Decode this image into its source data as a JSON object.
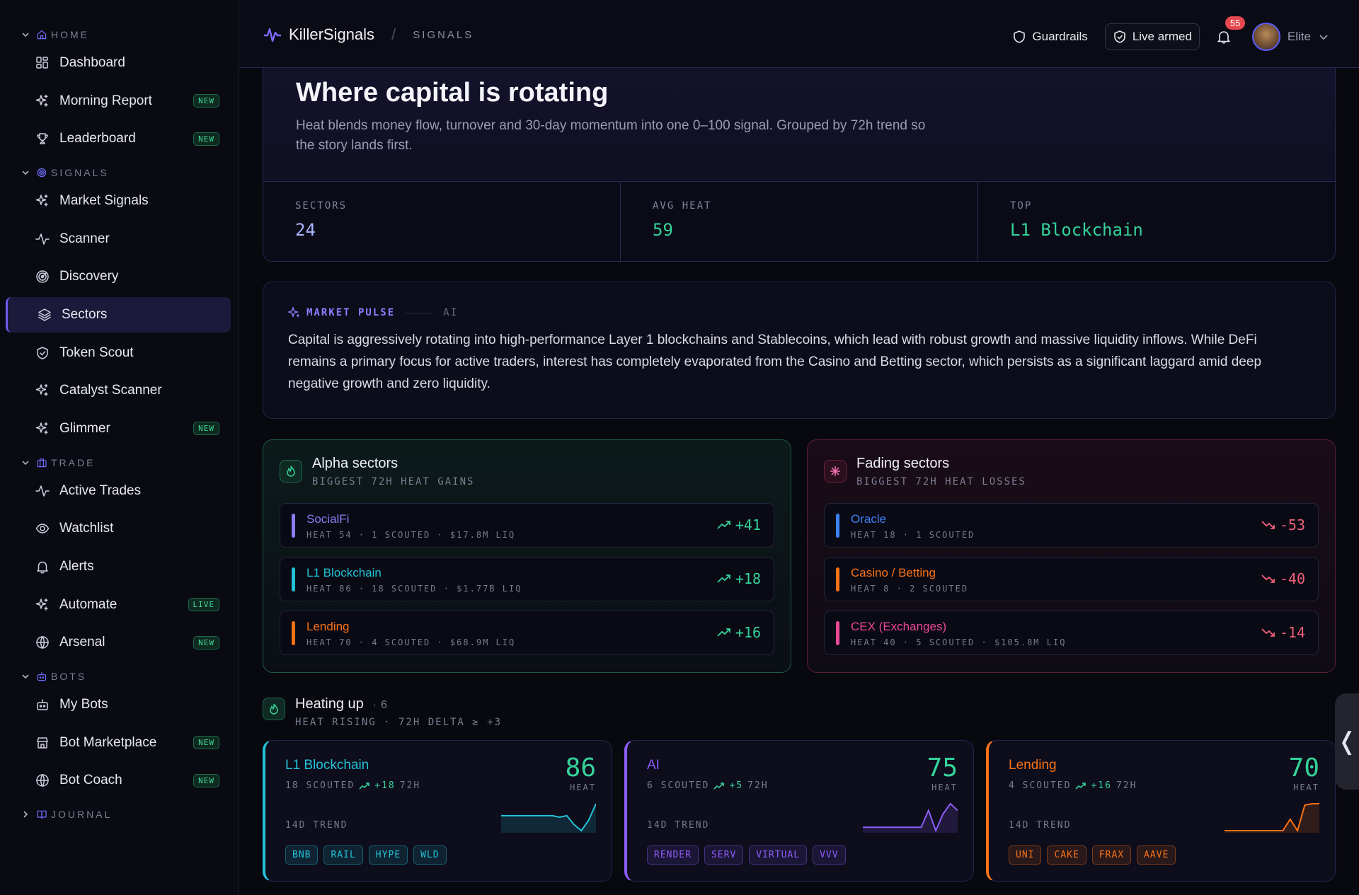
{
  "sidebar": {
    "sections": [
      {
        "id": "home",
        "label": "HOME",
        "items": [
          {
            "label": "Dashboard",
            "icon": "grid-icon",
            "badge": ""
          },
          {
            "label": "Morning Report",
            "icon": "sparkles-icon",
            "badge": "NEW"
          },
          {
            "label": "Leaderboard",
            "icon": "trophy-icon",
            "badge": "NEW"
          }
        ]
      },
      {
        "id": "signals",
        "label": "SIGNALS",
        "items": [
          {
            "label": "Market Signals",
            "icon": "sparkles-icon",
            "badge": ""
          },
          {
            "label": "Scanner",
            "icon": "activity-icon",
            "badge": ""
          },
          {
            "label": "Discovery",
            "icon": "radar-icon",
            "badge": ""
          },
          {
            "label": "Sectors",
            "icon": "layers-icon",
            "badge": "",
            "active": true
          },
          {
            "label": "Token Scout",
            "icon": "shield-icon",
            "badge": ""
          },
          {
            "label": "Catalyst Scanner",
            "icon": "sparkles-icon",
            "badge": ""
          },
          {
            "label": "Glimmer",
            "icon": "sparkles-icon",
            "badge": "NEW"
          }
        ]
      },
      {
        "id": "trade",
        "label": "TRADE",
        "items": [
          {
            "label": "Active Trades",
            "icon": "activity-icon",
            "badge": ""
          },
          {
            "label": "Watchlist",
            "icon": "eye-icon",
            "badge": ""
          },
          {
            "label": "Alerts",
            "icon": "bell-icon",
            "badge": ""
          },
          {
            "label": "Automate",
            "icon": "sparkles-icon",
            "badge": "LIVE"
          },
          {
            "label": "Arsenal",
            "icon": "globe-icon",
            "badge": "NEW"
          }
        ]
      },
      {
        "id": "bots",
        "label": "BOTS",
        "items": [
          {
            "label": "My Bots",
            "icon": "bot-icon",
            "badge": ""
          },
          {
            "label": "Bot Marketplace",
            "icon": "store-icon",
            "badge": "NEW"
          },
          {
            "label": "Bot Coach",
            "icon": "globe-icon",
            "badge": "NEW"
          }
        ]
      }
    ],
    "collapsed_section": {
      "label": "JOURNAL"
    }
  },
  "topbar": {
    "brand": "KillerSignals",
    "sub": "SIGNALS",
    "guardrails": "Guardrails",
    "live_armed": "Live armed",
    "notifications": "55",
    "user": "Elite"
  },
  "hero": {
    "title": "Where capital is rotating",
    "desc": "Heat blends money flow, turnover and 30-day momentum into one 0–100 signal. Grouped by 72h trend so the story lands first.",
    "stats": [
      {
        "label": "SECTORS",
        "value": "24",
        "color": "#a9b4ff"
      },
      {
        "label": "AVG HEAT",
        "value": "59",
        "color": "#34d399"
      },
      {
        "label": "TOP",
        "value": "L1 Blockchain",
        "color": "#34d399"
      }
    ]
  },
  "pulse": {
    "label": "MARKET PULSE",
    "tag": "AI",
    "text": "Capital is aggressively rotating into high-performance Layer 1 blockchains and Stablecoins, which lead with robust growth and massive liquidity inflows. While DeFi remains a primary focus for active traders, interest has completely evaporated from the Casino and Betting sector, which persists as a significant laggard amid deep negative growth and zero liquidity."
  },
  "alpha": {
    "title": "Alpha sectors",
    "sub": "BIGGEST 72H HEAT GAINS",
    "rows": [
      {
        "name": "SocialFi",
        "meta": "HEAT 54 · 1 SCOUTED · $17.8M LIQ",
        "delta": "+41",
        "color": "#8b7cf6"
      },
      {
        "name": "L1 Blockchain",
        "meta": "HEAT 86 · 18 SCOUTED · $1.77B LIQ",
        "delta": "+18",
        "color": "#22c3d6"
      },
      {
        "name": "Lending",
        "meta": "HEAT 70 · 4 SCOUTED · $68.9M LIQ",
        "delta": "+16",
        "color": "#f97316"
      }
    ]
  },
  "fading": {
    "title": "Fading sectors",
    "sub": "BIGGEST 72H HEAT LOSSES",
    "rows": [
      {
        "name": "Oracle",
        "meta": "HEAT 18 · 1 SCOUTED",
        "delta": "-53",
        "color": "#3b82f6"
      },
      {
        "name": "Casino / Betting",
        "meta": "HEAT 8 · 2 SCOUTED",
        "delta": "-40",
        "color": "#f97316"
      },
      {
        "name": "CEX (Exchanges)",
        "meta": "HEAT 40 · 5 SCOUTED · $105.8M LIQ",
        "delta": "-14",
        "color": "#ec4899"
      }
    ]
  },
  "heating": {
    "title": "Heating up",
    "count": "6",
    "sub": "HEAT RISING · 72H DELTA ≥ +3",
    "trend_label": "14D TREND",
    "heat_label": "HEAT",
    "cards": [
      {
        "name": "L1 Blockchain",
        "scouted": "18 SCOUTED",
        "delta": "+18",
        "period": "72H",
        "heat": "86",
        "color": "#22c3d6",
        "tokens": [
          "BNB",
          "RAIL",
          "HYPE",
          "WLD"
        ],
        "trend": [
          10,
          10,
          10,
          10,
          10,
          10,
          10,
          10,
          9,
          10,
          4,
          0,
          7,
          18
        ]
      },
      {
        "name": "AI",
        "scouted": "6 SCOUTED",
        "delta": "+5",
        "period": "72H",
        "heat": "75",
        "color": "#8b5cf6",
        "tokens": [
          "RENDER",
          "SERV",
          "VIRTUAL",
          "VVV"
        ],
        "trend": [
          2,
          2,
          2,
          2,
          2,
          2,
          2,
          2,
          2,
          12,
          0,
          10,
          16,
          12
        ]
      },
      {
        "name": "Lending",
        "scouted": "4 SCOUTED",
        "delta": "+16",
        "period": "72H",
        "heat": "70",
        "color": "#f97316",
        "tokens": [
          "UNI",
          "CAKE",
          "FRAX",
          "AAVE"
        ],
        "trend": [
          0,
          0,
          0,
          0,
          0,
          0,
          0,
          0,
          0,
          8,
          0,
          18,
          19,
          19
        ]
      }
    ]
  }
}
